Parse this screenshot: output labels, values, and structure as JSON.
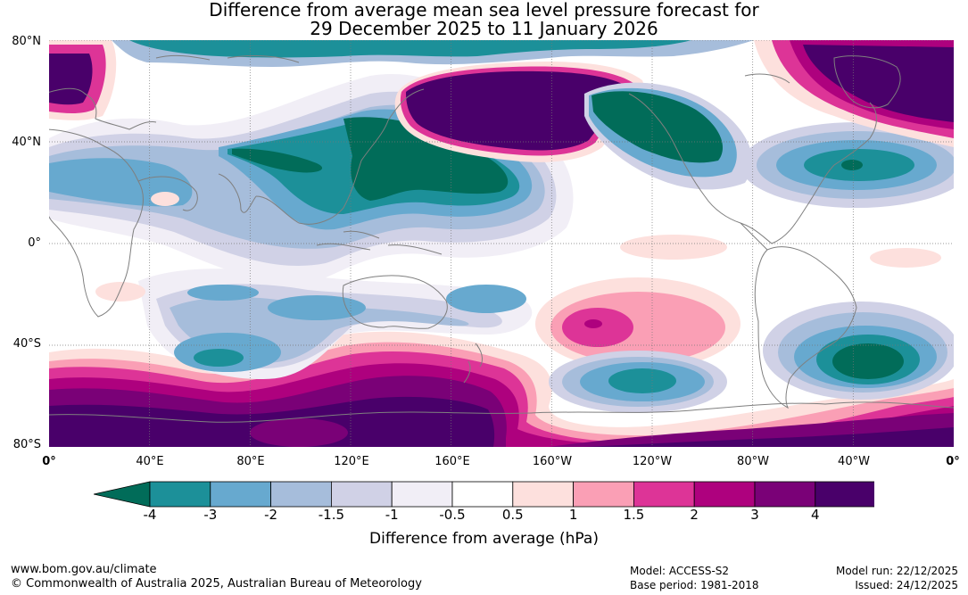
{
  "title_line1": "Difference from average mean sea level pressure forecast for",
  "title_line2": "29 December 2025 to 11 January 2026",
  "lat_labels": [
    "80°N",
    "40°N",
    "0°",
    "40°S",
    "80°S"
  ],
  "lon_labels": [
    "0°",
    "40°E",
    "80°E",
    "120°E",
    "160°E",
    "160°W",
    "120°W",
    "80°W",
    "40°W",
    "0°"
  ],
  "colorbar": {
    "ticks": [
      "-4",
      "-3",
      "-2",
      "-1.5",
      "-1",
      "-0.5",
      "0.5",
      "1",
      "1.5",
      "2",
      "3",
      "4"
    ],
    "under_color": "#016c59",
    "over_color": "#49006a",
    "colors": [
      "#1c9099",
      "#67a9cf",
      "#a6bddb",
      "#d0d1e6",
      "#f1eef6",
      "#ffffff",
      "#fde0dd",
      "#fa9fb5",
      "#dd3497",
      "#ae017e",
      "#7a0177",
      "#49006a"
    ],
    "title": "Difference from average (hPa)"
  },
  "footer": {
    "website": "www.bom.gov.au/climate",
    "copyright": "© Commonwealth of Australia 2025, Australian Bureau of Meteorology",
    "model": "Model: ACCESS-S2",
    "base_period": "Base period: 1981-2018",
    "model_run": "Model run: 22/12/2025",
    "issued": "Issued: 24/12/2025"
  }
}
